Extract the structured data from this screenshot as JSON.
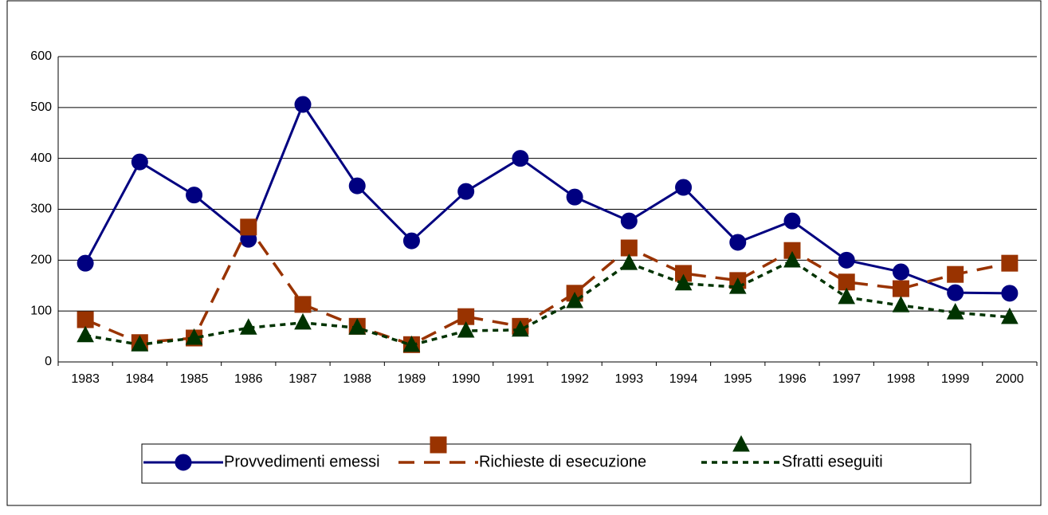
{
  "chart_data": {
    "type": "line",
    "categories": [
      "1983",
      "1984",
      "1985",
      "1986",
      "1987",
      "1988",
      "1989",
      "1990",
      "1991",
      "1992",
      "1993",
      "1994",
      "1995",
      "1996",
      "1997",
      "1998",
      "1999",
      "2000"
    ],
    "series": [
      {
        "name": "Provvedimenti emessi",
        "color": "#000080",
        "marker": "circle",
        "dash": "solid",
        "values": [
          194,
          393,
          328,
          241,
          506,
          346,
          238,
          335,
          400,
          324,
          277,
          343,
          235,
          277,
          200,
          177,
          136,
          135
        ]
      },
      {
        "name": "Richieste di esecuzione",
        "color": "#993300",
        "marker": "square",
        "dash": "long",
        "values": [
          83,
          38,
          47,
          265,
          113,
          70,
          34,
          89,
          70,
          135,
          224,
          174,
          160,
          219,
          157,
          144,
          172,
          194
        ]
      },
      {
        "name": "Sfratti eseguiti",
        "color": "#003300",
        "marker": "triangle",
        "dash": "short",
        "values": [
          52,
          34,
          47,
          67,
          77,
          67,
          33,
          61,
          63,
          119,
          194,
          154,
          147,
          199,
          127,
          111,
          97,
          88
        ]
      }
    ],
    "ylim": [
      0,
      600
    ],
    "yticks": [
      0,
      100,
      200,
      300,
      400,
      500,
      600
    ],
    "grid": true,
    "legend": "bottom"
  }
}
